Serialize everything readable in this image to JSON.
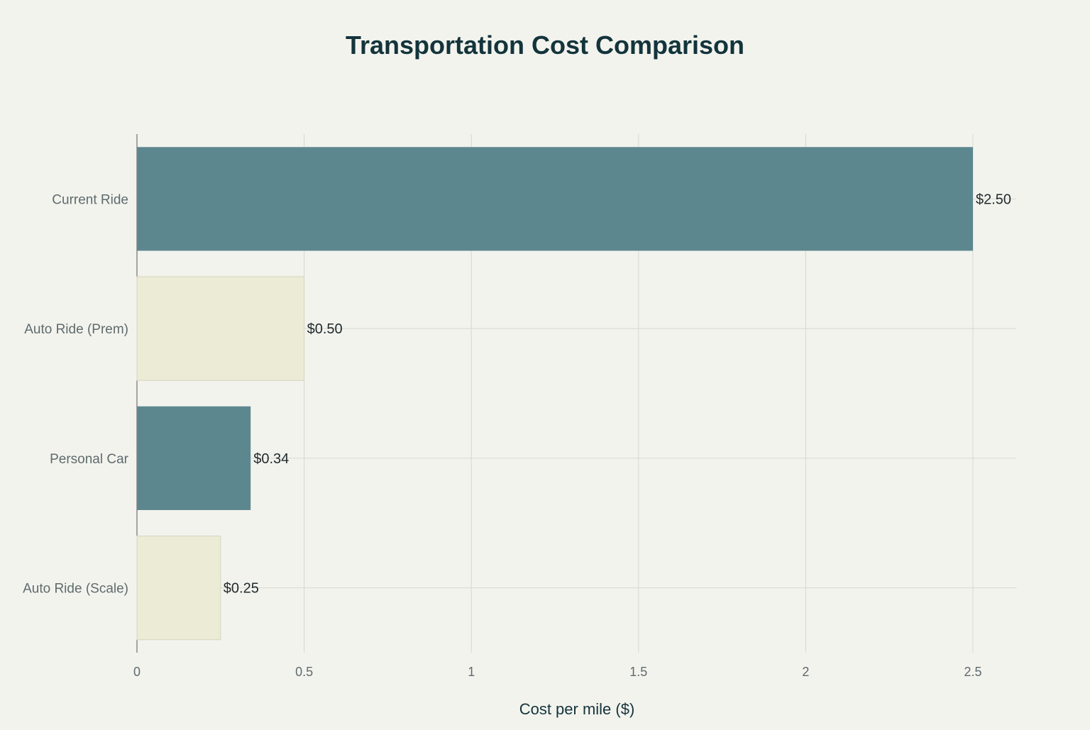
{
  "chart_data": {
    "type": "bar",
    "orientation": "horizontal",
    "title": "Transportation Cost Comparison",
    "xlabel": "Cost per mile ($)",
    "ylabel": "",
    "categories": [
      "Current Ride",
      "Auto Ride (Prem)",
      "Personal Car",
      "Auto Ride (Scale)"
    ],
    "values": [
      2.5,
      0.5,
      0.34,
      0.25
    ],
    "data_labels": [
      "$2.50",
      "$0.50",
      "$0.34",
      "$0.25"
    ],
    "bar_colors": [
      "#5D878F",
      "#ECEBD5",
      "#5D878F",
      "#ECEBD5"
    ],
    "xlim": [
      0,
      2.63
    ],
    "xticks": [
      0,
      0.5,
      1,
      1.5,
      2,
      2.5
    ],
    "xtick_labels": [
      "0",
      "0.5",
      "1",
      "1.5",
      "2",
      "2.5"
    ],
    "grid": true,
    "legend": "none",
    "colors": {
      "background": "#F3F3EE",
      "grid": "#D8D8D2",
      "title": "#13343B",
      "text": "#5F6B6D"
    }
  }
}
